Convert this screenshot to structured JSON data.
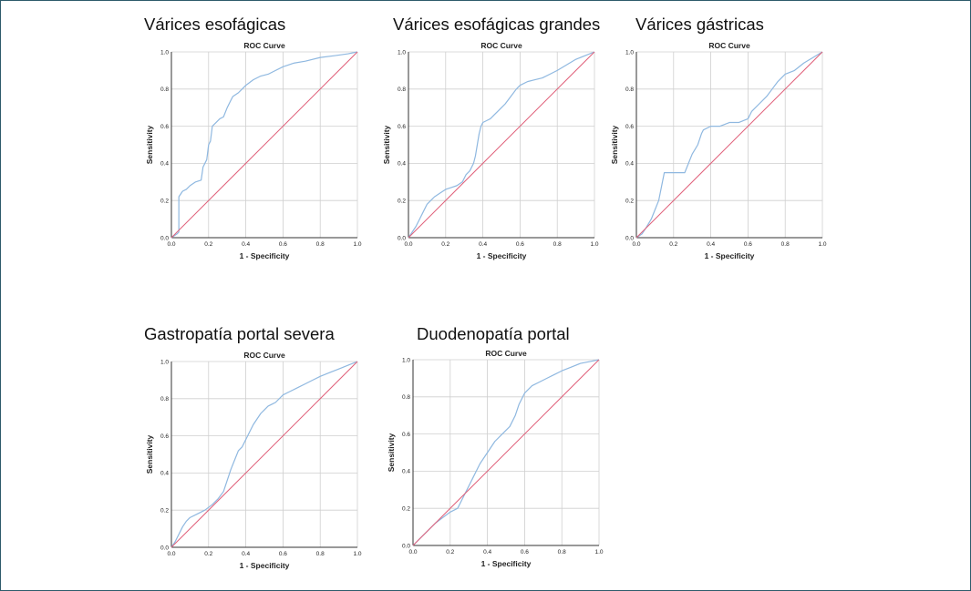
{
  "colors": {
    "frame": "#2e5b6b",
    "roc_line": "#8fb8e0",
    "reference_line": "#e0607a",
    "grid": "#cfcfcf",
    "axis": "#333333"
  },
  "panels": [
    {
      "heading": "Várices esofágicas"
    },
    {
      "heading": "Várices esofágicas grandes"
    },
    {
      "heading": "Várices gástricas"
    },
    {
      "heading": "Gastropatía portal severa"
    },
    {
      "heading": "Duodenopatía portal"
    }
  ],
  "chart_data": [
    {
      "type": "line",
      "title": "ROC Curve",
      "xlabel": "1 - Specificity",
      "ylabel": "Sensitivity",
      "xlim": [
        0,
        1
      ],
      "ylim": [
        0,
        1
      ],
      "ticks": [
        "0.0",
        "0.2",
        "0.4",
        "0.6",
        "0.8",
        "1.0"
      ],
      "grid": true,
      "series": [
        {
          "name": "ROC",
          "x": [
            0,
            0.03,
            0.04,
            0.04,
            0.06,
            0.08,
            0.1,
            0.13,
            0.16,
            0.17,
            0.19,
            0.2,
            0.21,
            0.22,
            0.24,
            0.26,
            0.28,
            0.3,
            0.32,
            0.33,
            0.36,
            0.38,
            0.4,
            0.44,
            0.48,
            0.52,
            0.56,
            0.6,
            0.66,
            0.72,
            0.8,
            0.88,
            0.95,
            1.0
          ],
          "y": [
            0,
            0.02,
            0.03,
            0.22,
            0.25,
            0.26,
            0.28,
            0.3,
            0.31,
            0.38,
            0.42,
            0.5,
            0.52,
            0.6,
            0.62,
            0.64,
            0.65,
            0.7,
            0.74,
            0.76,
            0.78,
            0.8,
            0.82,
            0.85,
            0.87,
            0.88,
            0.9,
            0.92,
            0.94,
            0.95,
            0.97,
            0.98,
            0.99,
            1.0
          ]
        },
        {
          "name": "Reference Line",
          "x": [
            0,
            1
          ],
          "y": [
            0,
            1
          ]
        }
      ]
    },
    {
      "type": "line",
      "title": "ROC Curve",
      "xlabel": "1 - Specificity",
      "ylabel": "Sensitivity",
      "xlim": [
        0,
        1
      ],
      "ylim": [
        0,
        1
      ],
      "ticks": [
        "0.0",
        "0.2",
        "0.4",
        "0.6",
        "0.8",
        "1.0"
      ],
      "grid": true,
      "series": [
        {
          "name": "ROC",
          "x": [
            0,
            0.02,
            0.04,
            0.06,
            0.08,
            0.1,
            0.12,
            0.14,
            0.17,
            0.2,
            0.23,
            0.26,
            0.29,
            0.31,
            0.33,
            0.35,
            0.36,
            0.37,
            0.38,
            0.39,
            0.4,
            0.42,
            0.44,
            0.46,
            0.48,
            0.5,
            0.52,
            0.55,
            0.58,
            0.6,
            0.64,
            0.68,
            0.72,
            0.76,
            0.8,
            0.85,
            0.9,
            0.95,
            1.0
          ],
          "y": [
            0,
            0.03,
            0.06,
            0.1,
            0.14,
            0.18,
            0.2,
            0.22,
            0.24,
            0.26,
            0.27,
            0.28,
            0.3,
            0.34,
            0.36,
            0.4,
            0.44,
            0.5,
            0.56,
            0.6,
            0.62,
            0.63,
            0.64,
            0.66,
            0.68,
            0.7,
            0.72,
            0.76,
            0.8,
            0.82,
            0.84,
            0.85,
            0.86,
            0.88,
            0.9,
            0.93,
            0.96,
            0.98,
            1.0
          ]
        },
        {
          "name": "Reference Line",
          "x": [
            0,
            1
          ],
          "y": [
            0,
            1
          ]
        }
      ]
    },
    {
      "type": "line",
      "title": "ROC Curve",
      "xlabel": "1 - Specificity",
      "ylabel": "Sensitivity",
      "xlim": [
        0,
        1
      ],
      "ylim": [
        0,
        1
      ],
      "ticks": [
        "0.0",
        "0.2",
        "0.4",
        "0.6",
        "0.8",
        "1.0"
      ],
      "grid": true,
      "series": [
        {
          "name": "ROC",
          "x": [
            0,
            0.03,
            0.05,
            0.08,
            0.1,
            0.12,
            0.13,
            0.14,
            0.15,
            0.2,
            0.26,
            0.28,
            0.3,
            0.33,
            0.35,
            0.36,
            0.4,
            0.45,
            0.5,
            0.55,
            0.6,
            0.62,
            0.66,
            0.7,
            0.73,
            0.76,
            0.8,
            0.85,
            0.9,
            0.95,
            1.0
          ],
          "y": [
            0,
            0.02,
            0.05,
            0.1,
            0.15,
            0.2,
            0.25,
            0.3,
            0.35,
            0.35,
            0.35,
            0.4,
            0.45,
            0.5,
            0.56,
            0.58,
            0.6,
            0.6,
            0.62,
            0.62,
            0.64,
            0.68,
            0.72,
            0.76,
            0.8,
            0.84,
            0.88,
            0.9,
            0.94,
            0.97,
            1.0
          ]
        },
        {
          "name": "Reference Line",
          "x": [
            0,
            1
          ],
          "y": [
            0,
            1
          ]
        }
      ]
    },
    {
      "type": "line",
      "title": "ROC Curve",
      "xlabel": "1 - Specificity",
      "ylabel": "Sensitivity",
      "xlim": [
        0,
        1
      ],
      "ylim": [
        0,
        1
      ],
      "ticks": [
        "0.0",
        "0.2",
        "0.4",
        "0.6",
        "0.8",
        "1.0"
      ],
      "grid": true,
      "series": [
        {
          "name": "ROC",
          "x": [
            0,
            0.02,
            0.04,
            0.06,
            0.08,
            0.1,
            0.14,
            0.18,
            0.22,
            0.25,
            0.28,
            0.3,
            0.32,
            0.34,
            0.36,
            0.38,
            0.4,
            0.42,
            0.44,
            0.46,
            0.48,
            0.5,
            0.52,
            0.54,
            0.56,
            0.6,
            0.64,
            0.68,
            0.72,
            0.76,
            0.8,
            0.85,
            0.9,
            0.95,
            1.0
          ],
          "y": [
            0,
            0.03,
            0.07,
            0.11,
            0.14,
            0.16,
            0.18,
            0.2,
            0.23,
            0.26,
            0.3,
            0.36,
            0.42,
            0.47,
            0.52,
            0.54,
            0.58,
            0.62,
            0.66,
            0.69,
            0.72,
            0.74,
            0.76,
            0.77,
            0.78,
            0.82,
            0.84,
            0.86,
            0.88,
            0.9,
            0.92,
            0.94,
            0.96,
            0.98,
            1.0
          ]
        },
        {
          "name": "Reference Line",
          "x": [
            0,
            1
          ],
          "y": [
            0,
            1
          ]
        }
      ]
    },
    {
      "type": "line",
      "title": "ROC Curve",
      "xlabel": "1 - Specificity",
      "ylabel": "Sensitivity",
      "xlim": [
        0,
        1
      ],
      "ylim": [
        0,
        1
      ],
      "ticks": [
        "0.0",
        "0.2",
        "0.4",
        "0.6",
        "0.8",
        "1.0"
      ],
      "grid": true,
      "series": [
        {
          "name": "ROC",
          "x": [
            0,
            0.04,
            0.08,
            0.12,
            0.16,
            0.2,
            0.24,
            0.27,
            0.3,
            0.32,
            0.34,
            0.36,
            0.4,
            0.44,
            0.48,
            0.52,
            0.55,
            0.57,
            0.59,
            0.6,
            0.64,
            0.68,
            0.72,
            0.76,
            0.8,
            0.85,
            0.9,
            0.95,
            1.0
          ],
          "y": [
            0,
            0.04,
            0.08,
            0.12,
            0.15,
            0.18,
            0.2,
            0.26,
            0.32,
            0.36,
            0.4,
            0.44,
            0.5,
            0.56,
            0.6,
            0.64,
            0.7,
            0.76,
            0.8,
            0.82,
            0.86,
            0.88,
            0.9,
            0.92,
            0.94,
            0.96,
            0.98,
            0.99,
            1.0
          ]
        },
        {
          "name": "Reference Line",
          "x": [
            0,
            1
          ],
          "y": [
            0,
            1
          ]
        }
      ]
    }
  ]
}
